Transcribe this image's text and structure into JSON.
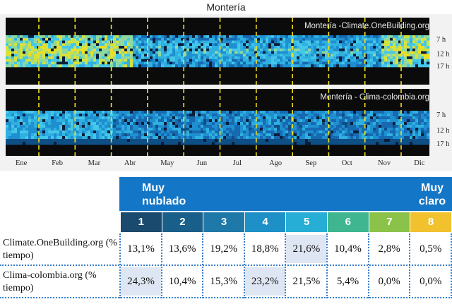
{
  "title": "Montería",
  "chart_data": [
    {
      "type": "heatmap",
      "title": "Montería -Climate.OneBuilding.org",
      "y_tick_labels": [
        "7 h",
        "12 h",
        "17 h"
      ],
      "x_tick_labels": [
        "Ene",
        "Feb",
        "Mar",
        "Abr",
        "May",
        "Jun",
        "Jul",
        "Ago",
        "Sep",
        "Oct",
        "Nov",
        "Dic"
      ],
      "grid": true
    },
    {
      "type": "heatmap",
      "title": "Montería - Clima-colombia.org",
      "y_tick_labels": [
        "7 h",
        "12 h",
        "17 h"
      ],
      "x_tick_labels": [
        "Ene",
        "Feb",
        "Mar",
        "Abr",
        "May",
        "Jun",
        "Jul",
        "Ago",
        "Sep",
        "Oct",
        "Nov",
        "Dic"
      ],
      "grid": true
    },
    {
      "type": "table",
      "header_left": "Muy nublado",
      "header_right": "Muy claro",
      "classes": [
        "1",
        "2",
        "3",
        "4",
        "5",
        "6",
        "7",
        "8"
      ],
      "class_colors": [
        "#1a4a6e",
        "#1a5e8a",
        "#1f79a8",
        "#1e90c8",
        "#27aed6",
        "#3fb68f",
        "#8bc34a",
        "#f2c12e"
      ],
      "rows": [
        {
          "label": "Climate.OneBuilding.org (% tiempo)",
          "values": [
            "13,1%",
            "13,6%",
            "19,2%",
            "18,8%",
            "21,6%",
            "10,4%",
            "2,8%",
            "0,5%"
          ],
          "highlight_index": 4
        },
        {
          "label": "Clima-colombia.org (% tiempo)",
          "values": [
            "24,3%",
            "10,4%",
            "15,3%",
            "23,2%",
            "21,5%",
            "5,4%",
            "0,0%",
            "0,0%"
          ],
          "highlight_index": 0,
          "highlight_index_2": 3
        }
      ]
    }
  ]
}
